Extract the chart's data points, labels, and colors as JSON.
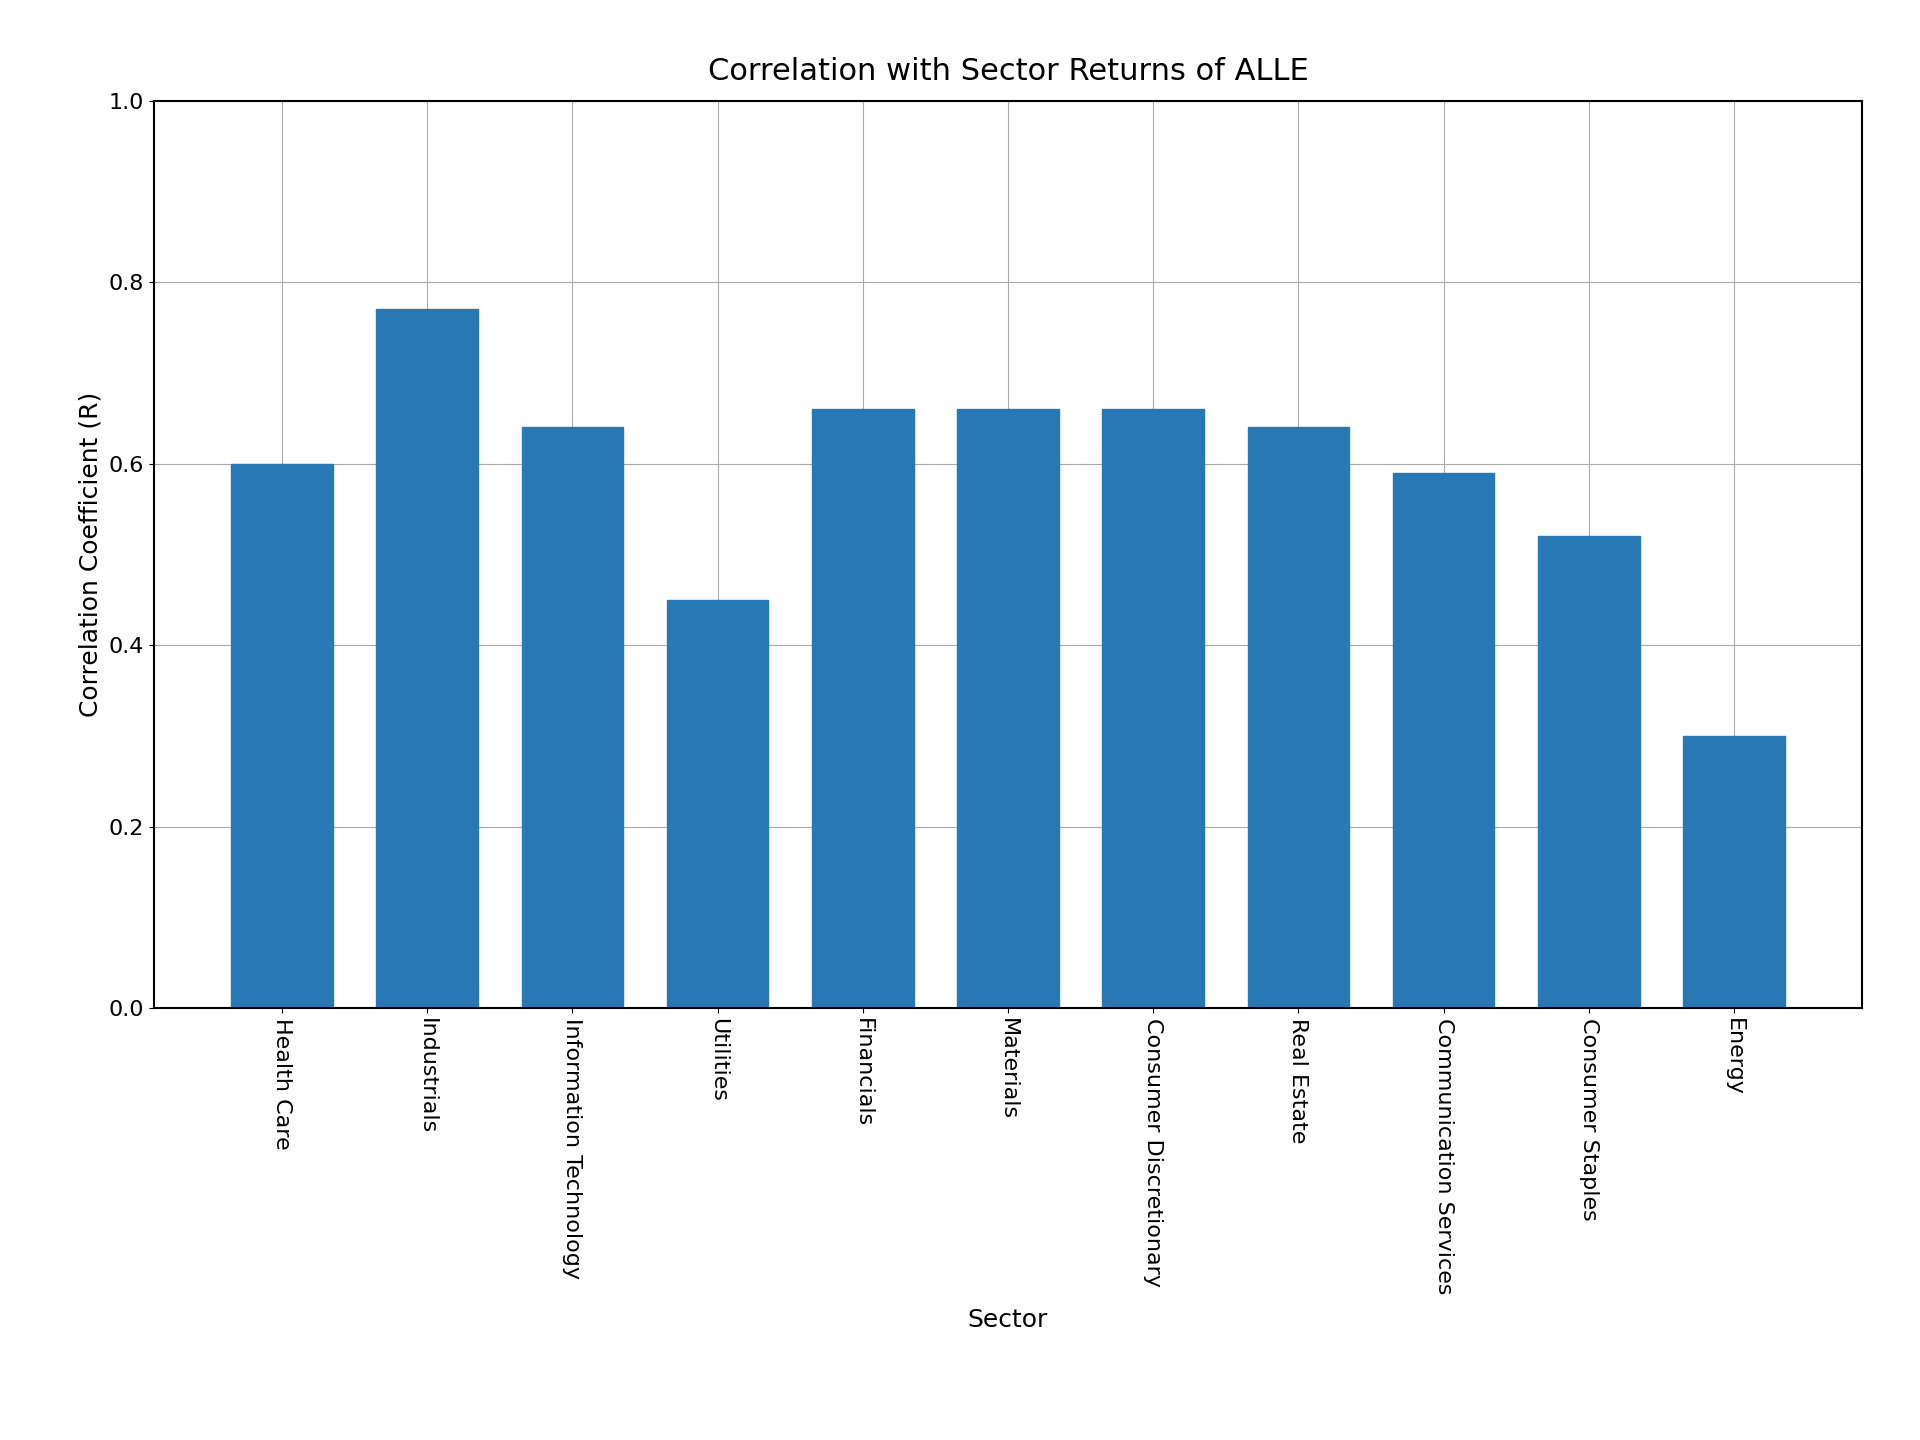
{
  "title": "Correlation with Sector Returns of ALLE",
  "xlabel": "Sector",
  "ylabel": "Correlation Coefficient (R)",
  "categories": [
    "Health Care",
    "Industrials",
    "Information Technology",
    "Utilities",
    "Financials",
    "Materials",
    "Consumer Discretionary",
    "Real Estate",
    "Communication Services",
    "Consumer Staples",
    "Energy"
  ],
  "values": [
    0.6,
    0.77,
    0.64,
    0.45,
    0.66,
    0.66,
    0.66,
    0.64,
    0.59,
    0.52,
    0.3
  ],
  "bar_color": "#2878b5",
  "ylim": [
    0.0,
    1.0
  ],
  "yticks": [
    0.0,
    0.2,
    0.4,
    0.6,
    0.8,
    1.0
  ],
  "title_fontsize": 22,
  "axis_label_fontsize": 18,
  "tick_fontsize": 16,
  "background_color": "#ffffff",
  "grid_color": "#aaaaaa",
  "bar_width": 0.7
}
